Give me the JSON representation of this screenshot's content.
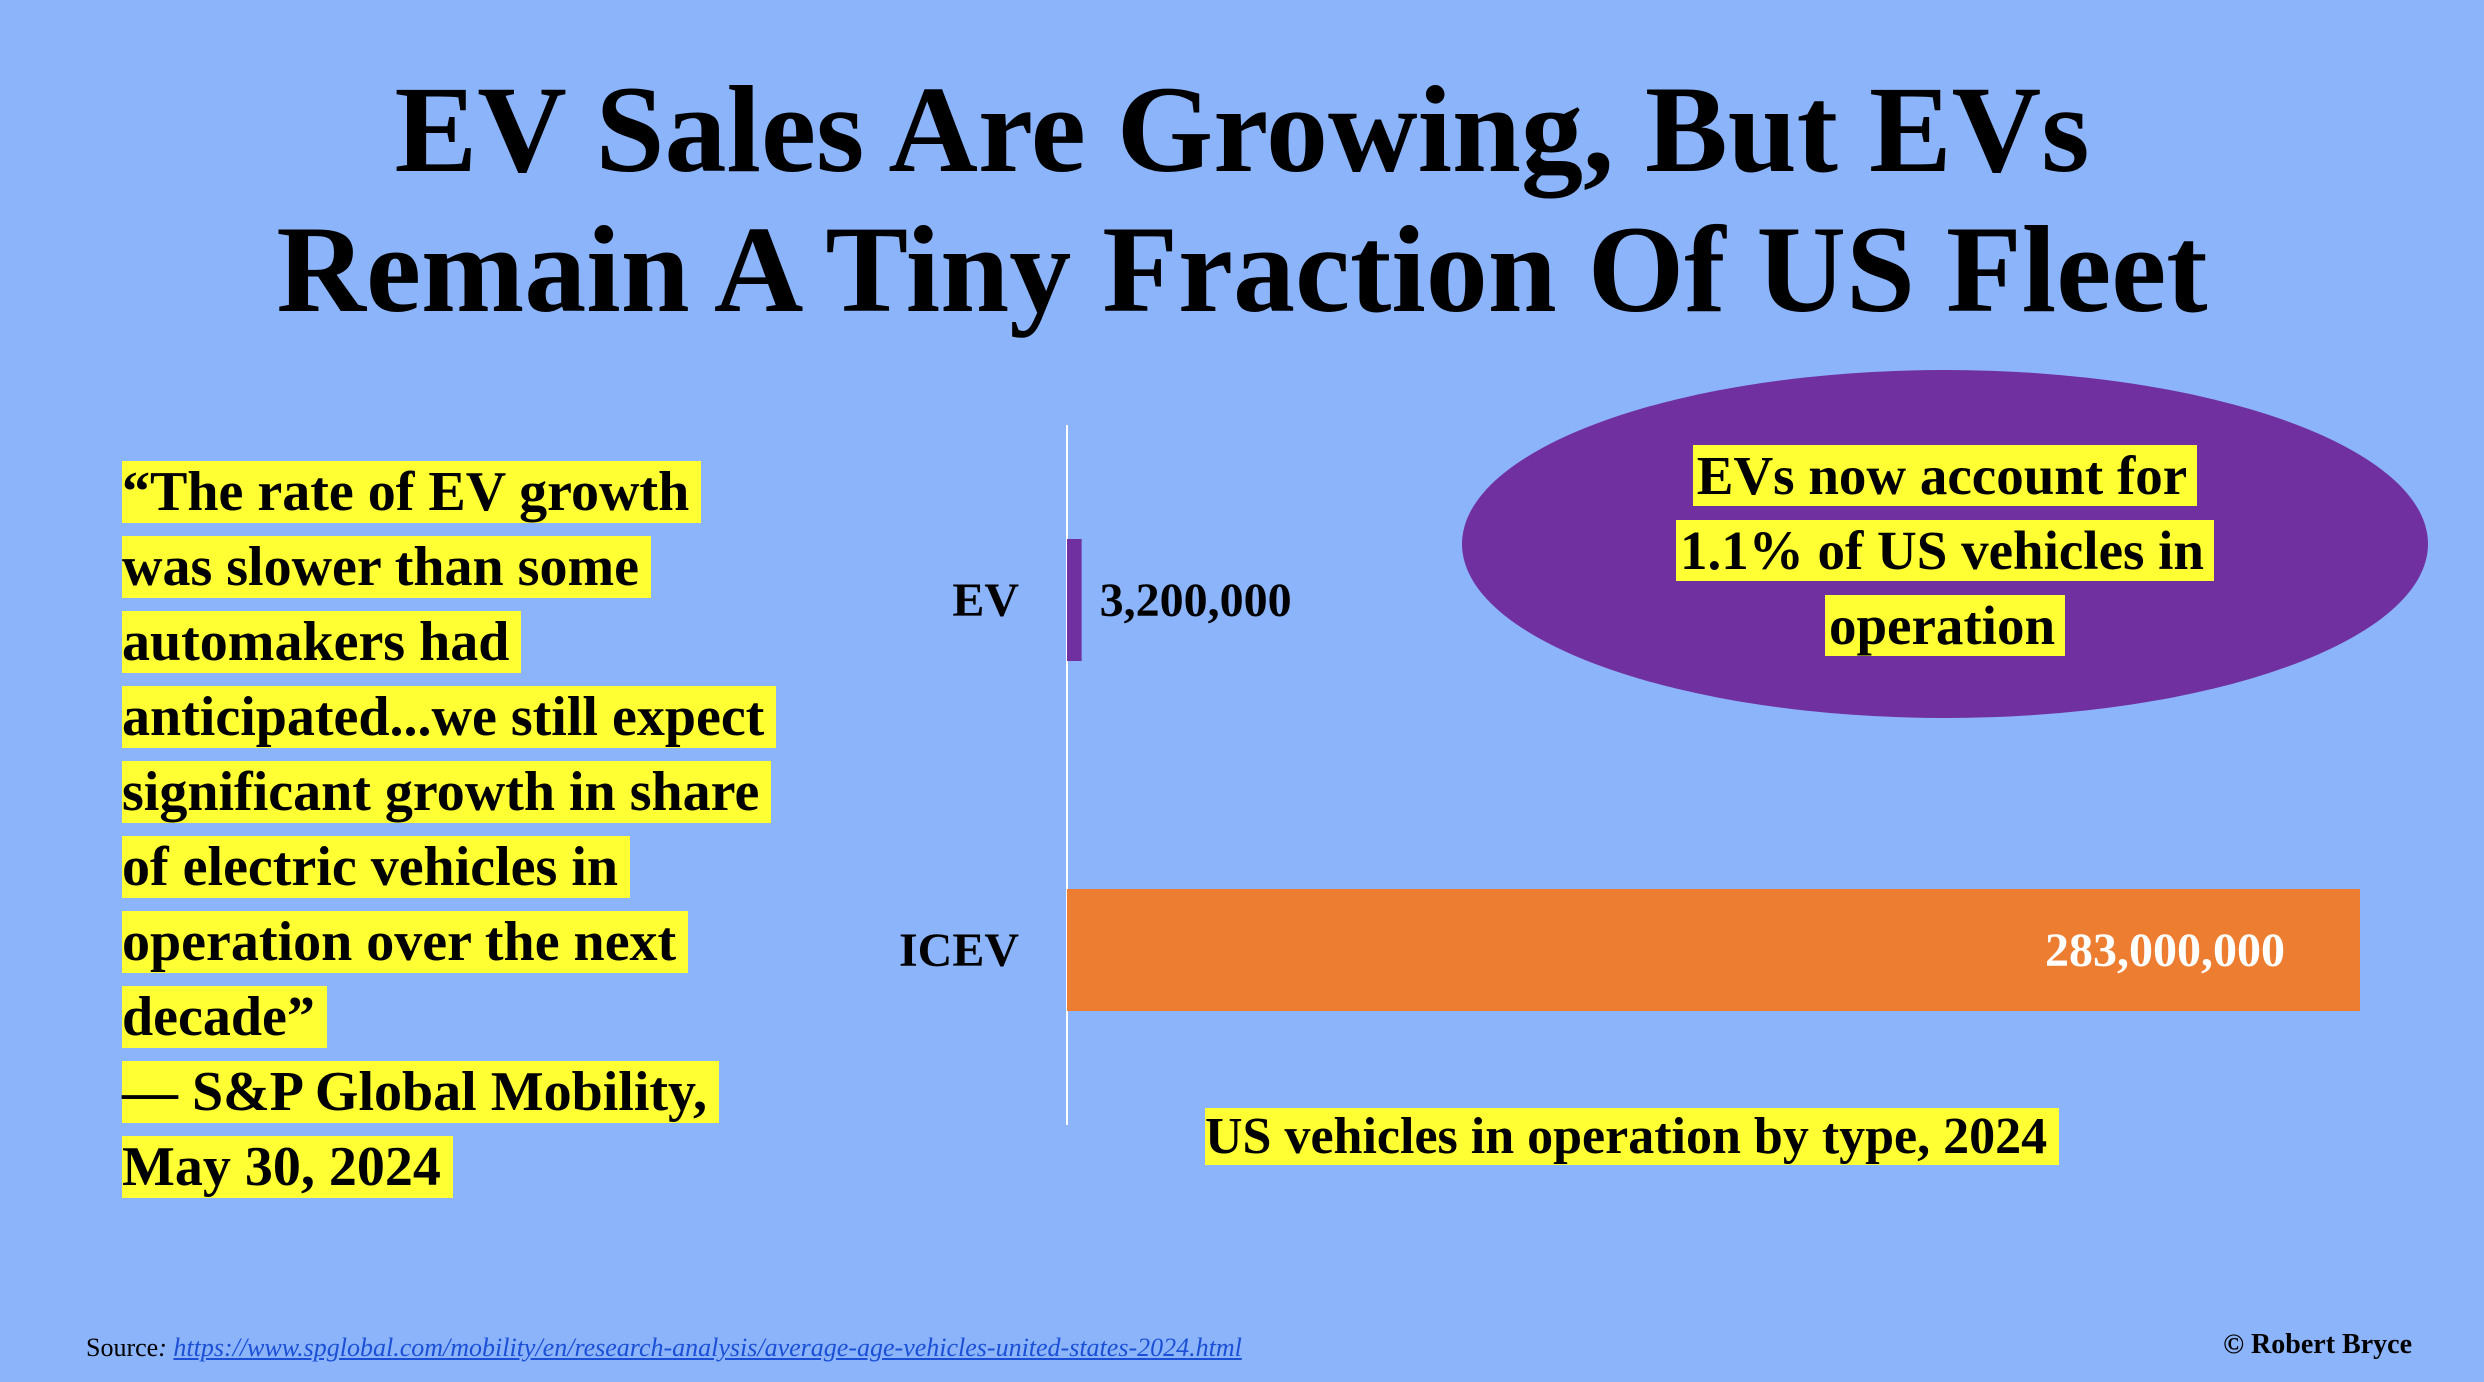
{
  "title": {
    "line1": "EV Sales Are Growing, But EVs",
    "line2": "Remain A Tiny Fraction Of US Fleet"
  },
  "quote": {
    "lines": [
      "“The rate of EV growth",
      "was slower than some",
      "automakers had",
      "anticipated...we still expect",
      "significant growth in share",
      "of electric vehicles in",
      "operation over the next",
      "decade”",
      "— S&P Global Mobility,",
      "May 30, 2024"
    ]
  },
  "callout": {
    "lines": [
      "EVs now account for",
      "1.1% of  US vehicles in",
      "operation"
    ]
  },
  "source": {
    "label": "Source",
    "separator": ": ",
    "url": "https://www.spglobal.com/mobility/en/research-analysis/average-age-vehicles-united-states-2024.html"
  },
  "copyright": "© Robert Bryce",
  "colors": {
    "background": "#8cb4fa",
    "ev_bar": "#7030a0",
    "icev_bar": "#ed7d31",
    "highlight": "#ffff33",
    "callout": "#7030a0"
  },
  "chart_data": {
    "type": "bar",
    "orientation": "horizontal",
    "title": "US vehicles in operation by type, 2024",
    "categories": [
      "EV",
      "ICEV"
    ],
    "values": [
      3200000,
      283000000
    ],
    "value_labels": [
      "3,200,000",
      "283,000,000"
    ],
    "xlim": [
      0,
      283000000
    ],
    "grid": false,
    "legend": "none"
  }
}
